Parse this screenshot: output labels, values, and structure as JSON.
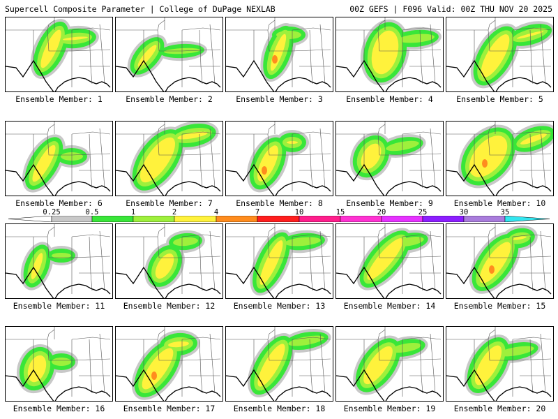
{
  "header": {
    "title": "Supercell Composite Parameter | College of DuPage NEXLAB",
    "run_info": "00Z GEFS | F096 Valid: 00Z THU NOV 20 2025"
  },
  "colorbar": {
    "ticks": [
      "0.25",
      "0.5",
      "1",
      "2",
      "4",
      "7",
      "10",
      "15",
      "20",
      "25",
      "30",
      "35"
    ],
    "colors": [
      "#ffffff",
      "#c8c8c8",
      "#39e639",
      "#9ef03c",
      "#fff23c",
      "#ff8c1e",
      "#ff1e1e",
      "#ff1e8c",
      "#ff32d2",
      "#e632ff",
      "#8c1eff",
      "#a97cdc",
      "#32e6f0"
    ]
  },
  "members": [
    {
      "label": "Ensemble Member: 1"
    },
    {
      "label": "Ensemble Member: 2"
    },
    {
      "label": "Ensemble Member: 3"
    },
    {
      "label": "Ensemble Member: 4"
    },
    {
      "label": "Ensemble Member: 5"
    },
    {
      "label": "Ensemble Member: 6"
    },
    {
      "label": "Ensemble Member: 7"
    },
    {
      "label": "Ensemble Member: 8"
    },
    {
      "label": "Ensemble Member: 9"
    },
    {
      "label": "Ensemble Member: 10"
    },
    {
      "label": "Ensemble Member: 11"
    },
    {
      "label": "Ensemble Member: 12"
    },
    {
      "label": "Ensemble Member: 13"
    },
    {
      "label": "Ensemble Member: 14"
    },
    {
      "label": "Ensemble Member: 15"
    },
    {
      "label": "Ensemble Member: 16"
    },
    {
      "label": "Ensemble Member: 17"
    },
    {
      "label": "Ensemble Member: 18"
    },
    {
      "label": "Ensemble Member: 19"
    },
    {
      "label": "Ensemble Member: 20"
    }
  ]
}
